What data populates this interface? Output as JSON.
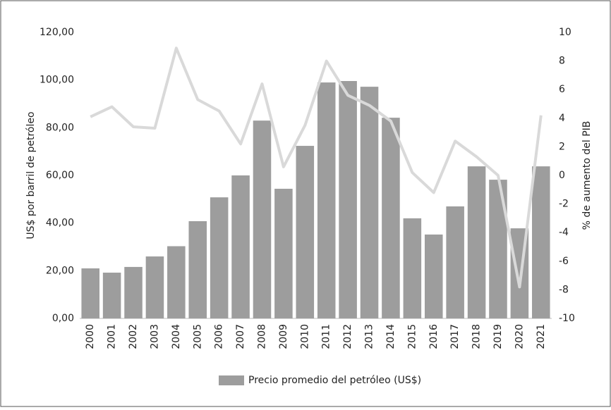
{
  "chart_data": {
    "type": "bar-line",
    "y_label": "US$ por barril de petróleo",
    "y2_label": "% de aumento del PIB",
    "categories": [
      "2000",
      "2001",
      "2002",
      "2003",
      "2004",
      "2005",
      "2006",
      "2007",
      "2008",
      "2009",
      "2010",
      "2011",
      "2012",
      "2013",
      "2014",
      "2015",
      "2016",
      "2017",
      "2018",
      "2019",
      "2020",
      "2021"
    ],
    "series": [
      {
        "name": "Precio promedio del petróleo (US$)",
        "type": "bar",
        "color": "#9d9d9d",
        "values": [
          21,
          19.2,
          21.6,
          26,
          30.3,
          40.8,
          50.8,
          60,
          83,
          54.4,
          72.4,
          99,
          99.6,
          97.2,
          84.2,
          42,
          35.2,
          47,
          63.8,
          58.2,
          37.8,
          63.8
        ]
      },
      {
        "type": "line",
        "axis": "y2",
        "color": "#d9d9d9",
        "values": [
          4.1,
          4.8,
          3.4,
          3.3,
          8.9,
          5.3,
          4.5,
          2.2,
          6.4,
          0.6,
          3.5,
          8.0,
          5.6,
          4.9,
          3.8,
          0.2,
          -1.2,
          2.4,
          1.3,
          0.0,
          -7.8,
          4.2
        ]
      }
    ],
    "ylim": [
      0,
      120
    ],
    "yticks": [
      {
        "value": 0,
        "label": "0,00"
      },
      {
        "value": 20,
        "label": "20,00"
      },
      {
        "value": 40,
        "label": "40,00"
      },
      {
        "value": 60,
        "label": "60,00"
      },
      {
        "value": 80,
        "label": "80,00"
      },
      {
        "value": 100,
        "label": "100,00"
      },
      {
        "value": 120,
        "label": "120,00"
      }
    ],
    "y2lim": [
      -10,
      10
    ],
    "y2ticks": [
      -10,
      -8,
      -6,
      -4,
      -2,
      0,
      2,
      4,
      6,
      8,
      10
    ],
    "grid": false,
    "legend": "bottom"
  }
}
